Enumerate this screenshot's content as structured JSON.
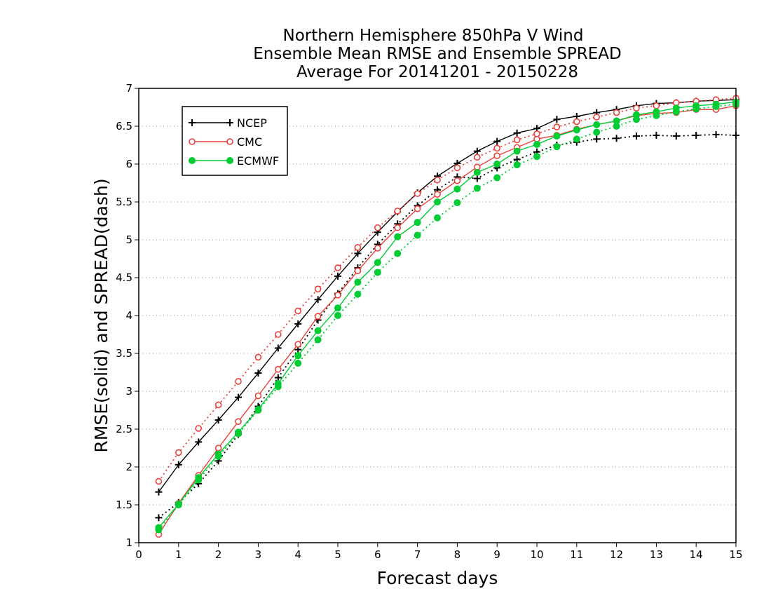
{
  "chart_data": {
    "type": "line",
    "title": [
      "Northern Hemisphere 850hPa V Wind",
      "Ensemble Mean RMSE and Ensemble SPREAD",
      "Average For 20141201 - 20150228"
    ],
    "xlabel": "Forecast days",
    "ylabel": "RMSE(solid) and SPREAD(dash)",
    "xlim": [
      0,
      15
    ],
    "ylim": [
      1,
      7
    ],
    "x_ticks": [
      0,
      1,
      2,
      3,
      4,
      5,
      6,
      7,
      8,
      9,
      10,
      11,
      12,
      13,
      14,
      15
    ],
    "y_ticks": [
      1,
      1.5,
      2,
      2.5,
      3,
      3.5,
      4,
      4.5,
      5,
      5.5,
      6,
      6.5,
      7
    ],
    "grid": "horizontal dotted",
    "legend_position": "top-left",
    "x": [
      0.5,
      1,
      1.5,
      2,
      2.5,
      3,
      3.5,
      4,
      4.5,
      5,
      5.5,
      6,
      6.5,
      7,
      7.5,
      8,
      8.5,
      9,
      9.5,
      10,
      10.5,
      11,
      11.5,
      12,
      12.5,
      13,
      13.5,
      14,
      14.5,
      15
    ],
    "series": [
      {
        "name": "NCEP",
        "color": "#000000",
        "marker": "plus",
        "rmse": [
          1.67,
          2.03,
          2.33,
          2.62,
          2.92,
          3.24,
          3.57,
          3.89,
          4.21,
          4.52,
          4.82,
          5.1,
          5.37,
          5.62,
          5.84,
          6.01,
          6.17,
          6.3,
          6.41,
          6.47,
          6.59,
          6.63,
          6.68,
          6.72,
          6.77,
          6.8,
          6.81,
          6.83,
          6.84,
          6.85
        ],
        "spread": [
          1.33,
          1.53,
          1.78,
          2.08,
          2.43,
          2.8,
          3.18,
          3.55,
          3.94,
          4.29,
          4.63,
          4.94,
          5.21,
          5.45,
          5.66,
          5.83,
          5.81,
          5.95,
          6.06,
          6.16,
          6.25,
          6.29,
          6.33,
          6.34,
          6.37,
          6.38,
          6.37,
          6.38,
          6.39,
          6.38
        ]
      },
      {
        "name": "CMC",
        "color": "#e8413c",
        "marker": "open-circle",
        "rmse": [
          1.11,
          1.52,
          1.89,
          2.25,
          2.6,
          2.94,
          3.29,
          3.62,
          3.99,
          4.27,
          4.59,
          4.89,
          5.16,
          5.41,
          5.6,
          5.78,
          5.96,
          6.11,
          6.22,
          6.33,
          6.38,
          6.46,
          6.52,
          6.57,
          6.64,
          6.67,
          6.68,
          6.72,
          6.72,
          6.77
        ],
        "spread": [
          1.81,
          2.19,
          2.51,
          2.82,
          3.13,
          3.45,
          3.75,
          4.06,
          4.35,
          4.63,
          4.9,
          5.16,
          5.38,
          5.61,
          5.79,
          5.95,
          6.09,
          6.21,
          6.32,
          6.4,
          6.49,
          6.56,
          6.62,
          6.68,
          6.74,
          6.77,
          6.81,
          6.83,
          6.85,
          6.87
        ]
      },
      {
        "name": "ECMWF",
        "color": "#00cc33",
        "marker": "filled-circle",
        "rmse": [
          1.2,
          1.51,
          1.86,
          2.17,
          2.46,
          2.76,
          3.1,
          3.47,
          3.8,
          4.1,
          4.44,
          4.7,
          5.04,
          5.23,
          5.5,
          5.67,
          5.89,
          6.0,
          6.17,
          6.26,
          6.37,
          6.45,
          6.52,
          6.57,
          6.65,
          6.69,
          6.74,
          6.77,
          6.79,
          6.82
        ],
        "spread": [
          1.17,
          1.5,
          1.83,
          2.14,
          2.44,
          2.75,
          3.06,
          3.37,
          3.68,
          4.0,
          4.28,
          4.57,
          4.82,
          5.06,
          5.29,
          5.49,
          5.68,
          5.82,
          5.99,
          6.1,
          6.23,
          6.33,
          6.42,
          6.5,
          6.59,
          6.64,
          6.69,
          6.73,
          6.76,
          6.79
        ]
      }
    ]
  }
}
